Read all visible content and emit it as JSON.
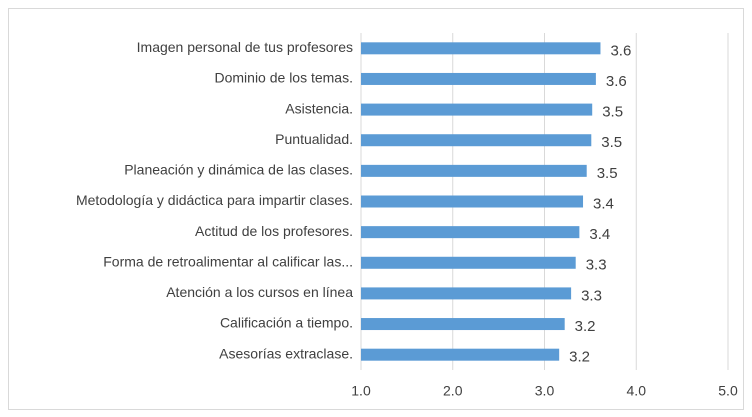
{
  "chart_data": {
    "type": "barh",
    "categories": [
      "Imagen personal de tus profesores",
      "Dominio de los temas.",
      "Asistencia.",
      "Puntualidad.",
      "Planeación y dinámica de las clases.",
      "Metodología y didáctica para impartir clases.",
      "Actitud de los profesores.",
      "Forma de retroalimentar al calificar las...",
      "Atención a los cursos en línea",
      "Calificación a tiempo.",
      "Asesorías extraclase."
    ],
    "values": [
      3.61,
      3.56,
      3.52,
      3.51,
      3.46,
      3.42,
      3.38,
      3.34,
      3.29,
      3.22,
      3.16
    ],
    "value_labels": [
      "3.6",
      "3.6",
      "3.5",
      "3.5",
      "3.5",
      "3.4",
      "3.4",
      "3.3",
      "3.3",
      "3.2",
      "3.2"
    ],
    "color": "#5b9bd5",
    "xlim": [
      1,
      5
    ],
    "xticks": [
      {
        "value": 1,
        "label": "1.0"
      },
      {
        "value": 2,
        "label": "2.0"
      },
      {
        "value": 3,
        "label": "3.0"
      },
      {
        "value": 4,
        "label": "4.0"
      },
      {
        "value": 5,
        "label": "5.0"
      }
    ],
    "grid": true
  }
}
